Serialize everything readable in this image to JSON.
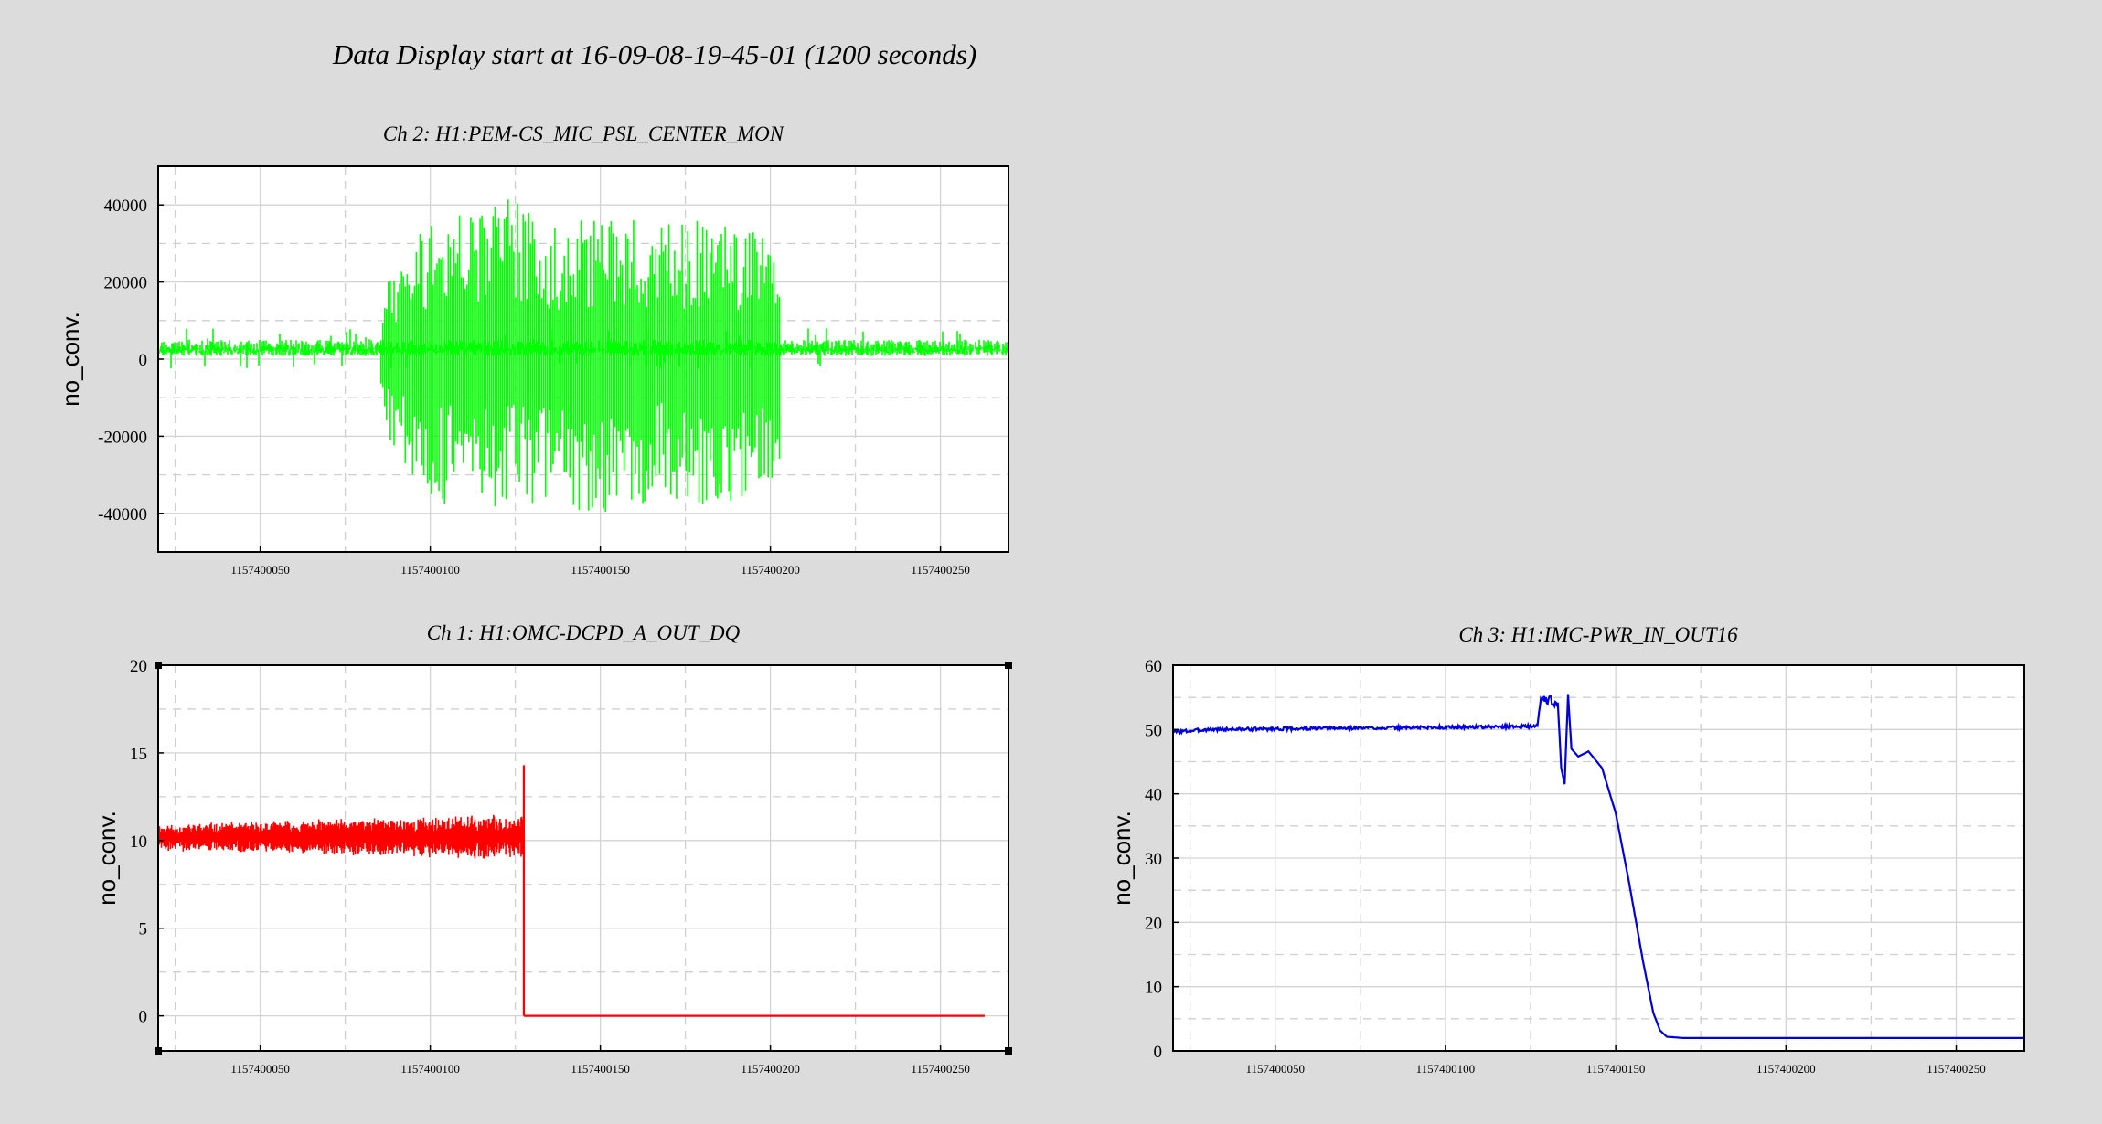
{
  "header": {
    "title": "Data Display start at 16-09-08-19-45-01 (1200 seconds)"
  },
  "colors": {
    "background": "#dcdcdc",
    "plot_background": "#ffffff",
    "grid_major": "#d3d3d3",
    "grid_minor": "#cfcfcf"
  },
  "chart_data": [
    {
      "id": "ch2",
      "type": "line",
      "title": "Ch 2: H1:PEM-CS_MIC_PSL_CENTER_MON",
      "ylabel": "no_conv.",
      "xlabel": "",
      "color": "#00ff00",
      "xlim": [
        1157400020,
        1157400270
      ],
      "ylim": [
        -50000,
        50000
      ],
      "xticks": [
        1157400050,
        1157400100,
        1157400150,
        1157400200,
        1157400250
      ],
      "xtick_labels": [
        "1157400050",
        "1157400100",
        "1157400150",
        "1157400200",
        "1157400250"
      ],
      "yticks": [
        -40000,
        -20000,
        0,
        20000,
        40000
      ],
      "ytick_labels": [
        "-40000",
        "-20000",
        "0",
        "20000",
        "40000"
      ],
      "grid": true,
      "envelope": {
        "x": [
          1157400020,
          1157400085,
          1157400086,
          1157400100,
          1157400110,
          1157400125,
          1157400130,
          1157400150,
          1157400165,
          1157400180,
          1157400195,
          1157400203,
          1157400204,
          1157400270
        ],
        "y_max": [
          5000,
          5000,
          22000,
          36000,
          40000,
          42000,
          37000,
          36000,
          36000,
          36000,
          35000,
          30000,
          5000,
          5000
        ],
        "y_min": [
          -1000,
          -1000,
          -20000,
          -38000,
          -40000,
          -37000,
          -39000,
          -41000,
          -37000,
          -38000,
          -36000,
          -31000,
          -1000,
          -1000
        ]
      }
    },
    {
      "id": "ch1",
      "type": "line",
      "title": "Ch 1: H1:OMC-DCPD_A_OUT_DQ",
      "ylabel": "no_conv.",
      "xlabel": "",
      "color": "#ff0000",
      "xlim": [
        1157400020,
        1157400270
      ],
      "ylim": [
        -2,
        20
      ],
      "xticks": [
        1157400050,
        1157400100,
        1157400150,
        1157400200,
        1157400250
      ],
      "xtick_labels": [
        "1157400050",
        "1157400100",
        "1157400150",
        "1157400200",
        "1157400250"
      ],
      "yticks": [
        0,
        5,
        10,
        15,
        20
      ],
      "ytick_labels": [
        "0",
        "5",
        "10",
        "15",
        "20"
      ],
      "grid": true,
      "noise_segment": {
        "x": [
          1157400020,
          1157400127.5
        ],
        "mean": 10.2,
        "amplitude": 0.9
      },
      "spike": {
        "x": 1157400127.5,
        "y_max": 14.3
      },
      "x": [
        1157400127.5,
        1157400263
      ],
      "y": [
        0,
        0
      ]
    },
    {
      "id": "ch3",
      "type": "line",
      "title": "Ch 3: H1:IMC-PWR_IN_OUT16",
      "ylabel": "no_conv.",
      "xlabel": "",
      "color": "#0000dd",
      "xlim": [
        1157400020,
        1157400270
      ],
      "ylim": [
        0,
        60
      ],
      "xticks": [
        1157400050,
        1157400100,
        1157400150,
        1157400200,
        1157400250
      ],
      "xtick_labels": [
        "1157400050",
        "1157400100",
        "1157400150",
        "1157400200",
        "1157400250"
      ],
      "yticks": [
        0,
        10,
        20,
        30,
        40,
        50,
        60
      ],
      "ytick_labels": [
        "0",
        "10",
        "20",
        "30",
        "40",
        "50",
        "60"
      ],
      "grid": true,
      "x": [
        1157400020,
        1157400030,
        1157400050,
        1157400070,
        1157400090,
        1157400110,
        1157400125,
        1157400127,
        1157400128,
        1157400131,
        1157400133,
        1157400134,
        1157400135,
        1157400136,
        1157400137,
        1157400139,
        1157400142,
        1157400146,
        1157400150,
        1157400154,
        1157400158,
        1157400161,
        1157400163,
        1157400165,
        1157400170,
        1157400270
      ],
      "y": [
        49.6,
        50.0,
        50.1,
        50.2,
        50.3,
        50.4,
        50.5,
        50.5,
        54.8,
        54.5,
        54.2,
        44.0,
        41.5,
        55.5,
        47.0,
        45.8,
        46.6,
        44.0,
        37.0,
        26.0,
        14.0,
        6.0,
        3.2,
        2.2,
        2.0,
        2.0
      ]
    }
  ]
}
